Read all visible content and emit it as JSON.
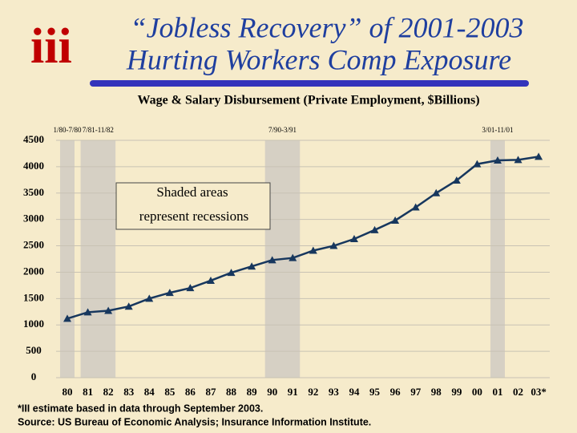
{
  "chart_data": {
    "type": "line",
    "title": [
      "“Jobless Recovery” of 2001-2003",
      "Hurting Workers Comp Exposure"
    ],
    "subtitle": "Wage & Salary Disbursement (Private Employment, $Billions)",
    "categories": [
      "80",
      "81",
      "82",
      "83",
      "84",
      "85",
      "86",
      "87",
      "88",
      "89",
      "90",
      "91",
      "92",
      "93",
      "94",
      "95",
      "96",
      "97",
      "98",
      "99",
      "00",
      "01",
      "02",
      "03*"
    ],
    "values": [
      1120,
      1240,
      1270,
      1350,
      1500,
      1610,
      1700,
      1840,
      1990,
      2110,
      2230,
      2270,
      2410,
      2500,
      2630,
      2800,
      2980,
      3230,
      3500,
      3740,
      4050,
      4120,
      4130,
      4190
    ],
    "color": "#17375e",
    "ylim": [
      0,
      4500
    ],
    "yticks": [
      0,
      500,
      1000,
      1500,
      2000,
      2500,
      3000,
      3500,
      4000,
      4500
    ],
    "grid": true,
    "recessions": [
      {
        "label": "1/80-7/80",
        "from": "80",
        "to": "80"
      },
      {
        "label": "7/81-11/82",
        "from": "81",
        "to": "82"
      },
      {
        "label": "7/90-3/91",
        "from": "90",
        "to": "91"
      },
      {
        "label": "3/01-11/01",
        "from": "01",
        "to": "01"
      }
    ],
    "annotation": [
      "Shaded areas",
      "represent recessions"
    ],
    "footnote": [
      "*III estimate based in data through September 2003.",
      "Source: US Bureau of Economic Analysis; Insurance Information Institute."
    ]
  }
}
